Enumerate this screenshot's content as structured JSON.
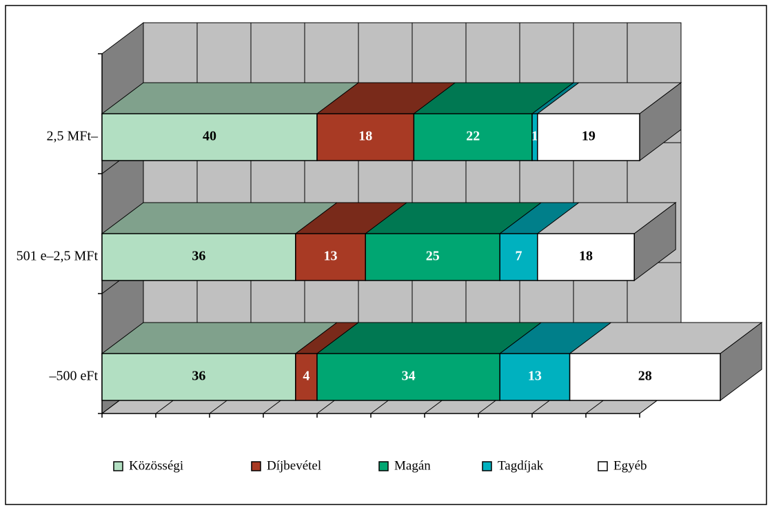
{
  "chart_data": {
    "type": "stacked-bar-3d",
    "categories": [
      "2,5 MFt–",
      "501 e–2,5 MFt",
      "–500 eFt"
    ],
    "series": [
      {
        "name": "Közösségi",
        "color": "#b2dfc2",
        "values": [
          40,
          36,
          36
        ]
      },
      {
        "name": "Díjbevétel",
        "color": "#a83a24",
        "values": [
          18,
          13,
          4
        ]
      },
      {
        "name": "Magán",
        "color": "#00a672",
        "values": [
          22,
          25,
          34
        ]
      },
      {
        "name": "Tagdíjak",
        "color": "#00b1bf",
        "values": [
          1,
          7,
          13
        ]
      },
      {
        "name": "Egyéb",
        "color": "#ffffff",
        "values": [
          19,
          18,
          28
        ]
      }
    ],
    "xlim": [
      0,
      100
    ],
    "xticks": [
      0,
      10,
      20,
      30,
      40,
      50,
      60,
      70,
      80,
      90,
      100
    ],
    "grid": true
  }
}
